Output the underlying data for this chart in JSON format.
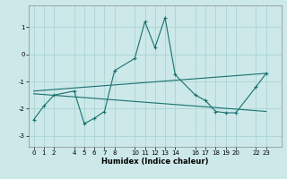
{
  "xlabel": "Humidex (Indice chaleur)",
  "bg_color": "#cce8e8",
  "line_color": "#1a7070",
  "grid_color": "#aad4d4",
  "line1_x": [
    0,
    1,
    2,
    4,
    5,
    6,
    7,
    8,
    10,
    11,
    12,
    13,
    14,
    16,
    17,
    18,
    19,
    20,
    22,
    23
  ],
  "line1_y": [
    -2.4,
    -1.9,
    -1.5,
    -1.35,
    -2.55,
    -2.35,
    -2.1,
    -0.6,
    -0.15,
    1.2,
    0.25,
    1.35,
    -0.75,
    -1.5,
    -1.7,
    -2.1,
    -2.15,
    -2.15,
    -1.2,
    -0.7
  ],
  "line2_x": [
    0,
    23
  ],
  "line2_y": [
    -1.35,
    -0.7
  ],
  "line3_x": [
    0,
    23
  ],
  "line3_y": [
    -1.45,
    -2.1
  ],
  "xlim": [
    -0.5,
    24.5
  ],
  "ylim": [
    -3.4,
    1.8
  ],
  "yticks": [
    -3,
    -2,
    -1,
    0,
    1
  ],
  "xticks": [
    0,
    1,
    2,
    4,
    5,
    6,
    7,
    8,
    10,
    11,
    12,
    13,
    14,
    16,
    17,
    18,
    19,
    20,
    22,
    23
  ],
  "xlabel_fontsize": 6.0,
  "tick_fontsize": 5.0
}
